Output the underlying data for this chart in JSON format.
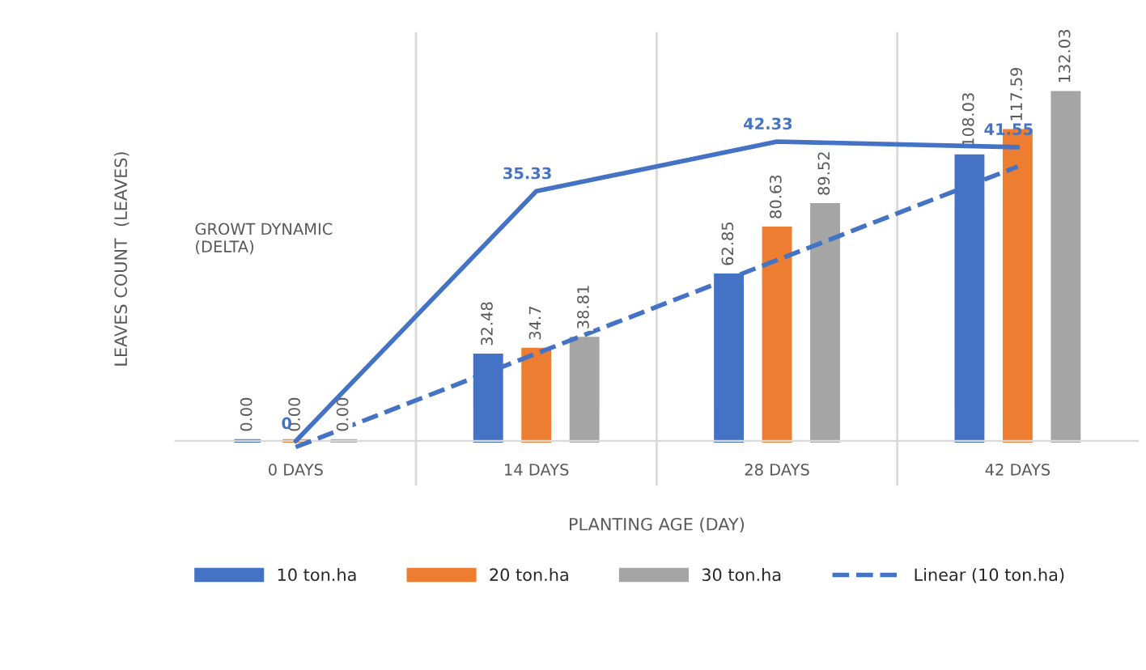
{
  "chart_data": {
    "type": "bar",
    "categories": [
      "0 DAYS",
      "14 DAYS",
      "28 DAYS",
      "42 DAYS"
    ],
    "xlabel": "PLANTING AGE (DAY)",
    "ylabel": "LEAVES COUNT  (LEAVES)",
    "ylim": [
      -17,
      155
    ],
    "y2lim": [
      -6.3,
      57.8
    ],
    "series": [
      {
        "name": "10 ton.ha",
        "color": "#4472c4",
        "values": [
          0,
          32.48,
          62.85,
          108.03
        ],
        "value_labels": [
          "0.00",
          "32.48",
          "62.85",
          "108.03"
        ]
      },
      {
        "name": "20 ton.ha",
        "color": "#ed7d31",
        "values": [
          0,
          34.7,
          80.63,
          117.59
        ],
        "value_labels": [
          "0.00",
          "34.7",
          "80.63",
          "117.59"
        ]
      },
      {
        "name": "30 ton.ha",
        "color": "#a5a5a5",
        "values": [
          0,
          38.81,
          89.52,
          132.03
        ],
        "value_labels": [
          "0.00",
          "38.81",
          "89.52",
          "132.03"
        ]
      },
      {
        "name": "Linear (10 ton.ha)",
        "type": "line",
        "line_style": "dashed",
        "color": "#4472c4",
        "values": [
          -2.33,
          33.12,
          68.57,
          104.02
        ]
      },
      {
        "type": "line",
        "axis": "y2",
        "line_style": "solid",
        "color": "#4472c4",
        "values": [
          0,
          35.33,
          42.33,
          41.55
        ],
        "value_labels": [
          "0",
          "35.33",
          "42.33",
          "41.55"
        ]
      }
    ],
    "annotations": [
      "GROWT DYNAMIC\n(DELTA)"
    ],
    "grid": "x",
    "legend": "bottom",
    "tick_labels": "x"
  }
}
